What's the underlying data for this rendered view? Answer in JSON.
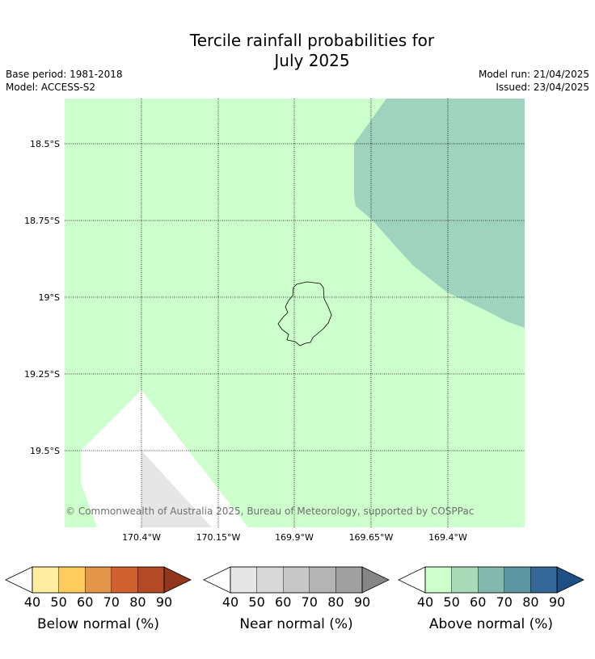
{
  "title_line1": "Tercile rainfall probabilities for",
  "title_line2": "July 2025",
  "base_period": "Base period: 1981-2018",
  "model": "Model: ACCESS-S2",
  "model_run": "Model run: 21/04/2025",
  "issued": "Issued: 23/04/2025",
  "lat_labels": [
    "18.5°S",
    "18.75°S",
    "19°S",
    "19.25°S",
    "19.5°S"
  ],
  "lon_labels": [
    "170.4°W",
    "170.15°W",
    "169.9°W",
    "169.65°W",
    "169.4°W"
  ],
  "copyright": "© Commonwealth of Australia 2025, Bureau of Meteorology, supported by COSPPac",
  "colorbars": [
    {
      "title": "Below normal (%)",
      "ticks": [
        "40",
        "50",
        "60",
        "70",
        "80",
        "90"
      ],
      "colors": [
        "#ffffff",
        "#ffeda0",
        "#fecc5c",
        "#e3954a",
        "#d0612e",
        "#b34a25",
        "#92361e"
      ]
    },
    {
      "title": "Near normal (%)",
      "ticks": [
        "40",
        "50",
        "60",
        "70",
        "80",
        "90"
      ],
      "colors": [
        "#ffffff",
        "#e6e6e6",
        "#d8d8d8",
        "#c8c8c8",
        "#b4b4b4",
        "#a0a0a0",
        "#868686"
      ]
    },
    {
      "title": "Above normal (%)",
      "ticks": [
        "40",
        "50",
        "60",
        "70",
        "80",
        "90"
      ],
      "colors": [
        "#ffffff",
        "#ccffcc",
        "#a9dbb9",
        "#82b8ad",
        "#5c96a0",
        "#356898",
        "#1e4f86"
      ]
    }
  ],
  "map_colors": {
    "above_40_50": "#ccffcc",
    "above_50_60": "#9fd3bd",
    "near_40_50": "#e6e6e6",
    "no_category": "#ffffff"
  }
}
